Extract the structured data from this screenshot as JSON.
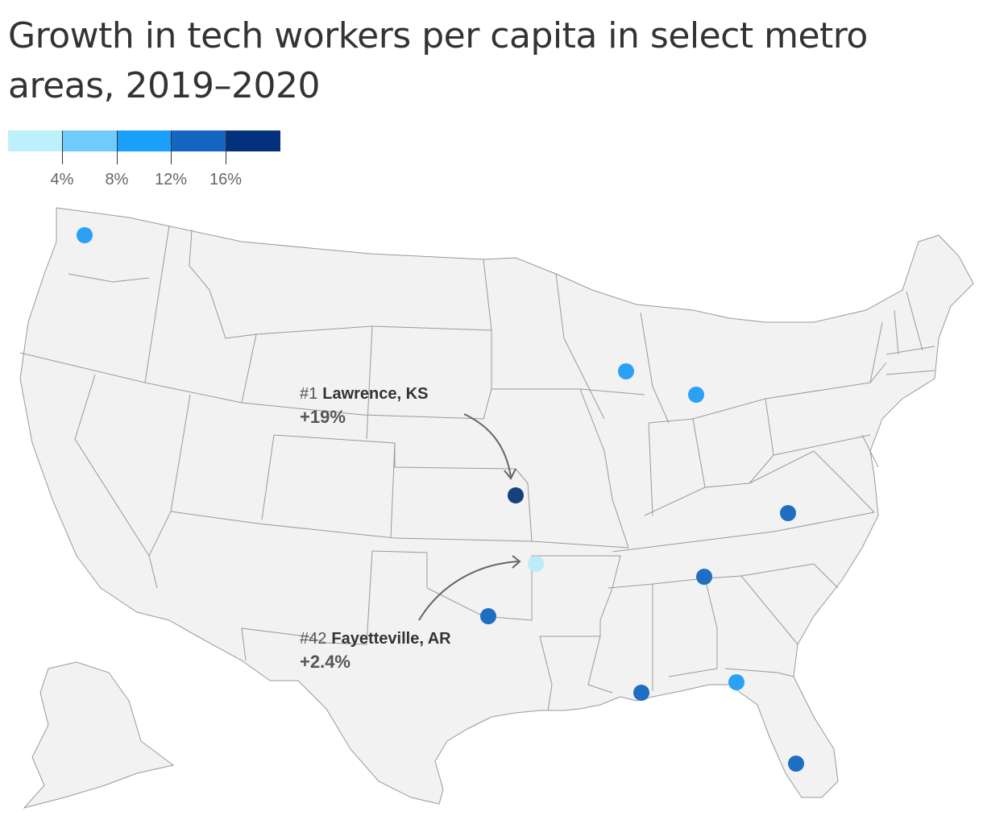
{
  "title": "Growth in tech workers per capita in select metro areas, 2019–2020",
  "legend": {
    "colors": [
      "#bdf0fb",
      "#6ecbfb",
      "#1a9ffa",
      "#1466c0",
      "#03317d"
    ],
    "ticks": [
      "4%",
      "8%",
      "12%",
      "16%"
    ]
  },
  "map_style": {
    "land": "#f2f2f2",
    "border": "#999999"
  },
  "metros": [
    {
      "name": "Washington",
      "color": "#2aa1f5"
    },
    {
      "name": "Wisconsin",
      "color": "#2aa1f5"
    },
    {
      "name": "Michigan",
      "color": "#2aa1f5"
    },
    {
      "name": "Lawrence, KS",
      "color": "#16407f"
    },
    {
      "name": "Virginia",
      "color": "#1f6ec2"
    },
    {
      "name": "Fayetteville, AR",
      "color": "#bcecf7"
    },
    {
      "name": "Tennessee",
      "color": "#1f6ec2"
    },
    {
      "name": "Texas",
      "color": "#1f6ec2"
    },
    {
      "name": "Louisiana",
      "color": "#1f6ec2"
    },
    {
      "name": "Florida Panhandle",
      "color": "#2aa1f5"
    },
    {
      "name": "South Florida",
      "color": "#1f6ec2"
    }
  ],
  "annotations": {
    "lawrence": {
      "rank": "#1",
      "name": "Lawrence, KS",
      "value": "+19%"
    },
    "fayetteville": {
      "rank": "#42",
      "name": "Fayetteville, AR",
      "value": "+2.4%"
    }
  }
}
